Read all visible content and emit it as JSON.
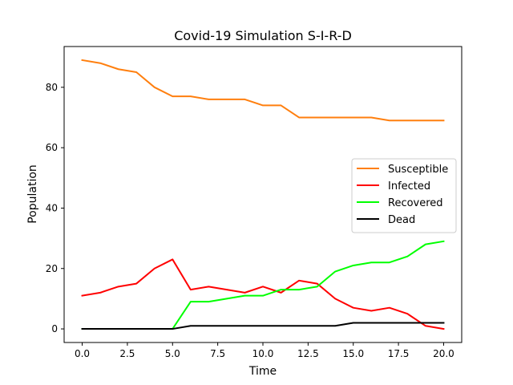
{
  "chart_data": {
    "type": "line",
    "title": "Covid-19 Simulation S-I-R-D",
    "xlabel": "Time",
    "ylabel": "Population",
    "xlim": [
      -1,
      21
    ],
    "ylim": [
      -4.5,
      93.5
    ],
    "xticks": [
      0.0,
      2.5,
      5.0,
      7.5,
      10.0,
      12.5,
      15.0,
      17.5,
      20.0
    ],
    "xtick_labels": [
      "0.0",
      "2.5",
      "5.0",
      "7.5",
      "10.0",
      "12.5",
      "15.0",
      "17.5",
      "20.0"
    ],
    "yticks": [
      0,
      20,
      40,
      60,
      80
    ],
    "ytick_labels": [
      "0",
      "20",
      "40",
      "60",
      "80"
    ],
    "grid": false,
    "legend_position": "center-right",
    "x": [
      0,
      1,
      2,
      3,
      4,
      5,
      6,
      7,
      8,
      9,
      10,
      11,
      12,
      13,
      14,
      15,
      16,
      17,
      18,
      19,
      20
    ],
    "series": [
      {
        "name": "Susceptible",
        "color": "#ff7f0e",
        "values": [
          89,
          88,
          86,
          85,
          80,
          77,
          77,
          76,
          76,
          76,
          74,
          74,
          70,
          70,
          70,
          70,
          70,
          69,
          69,
          69,
          69
        ]
      },
      {
        "name": "Infected",
        "color": "#ff0000",
        "values": [
          11,
          12,
          14,
          15,
          20,
          23,
          13,
          14,
          13,
          12,
          14,
          12,
          16,
          15,
          10,
          7,
          6,
          7,
          5,
          1,
          0
        ]
      },
      {
        "name": "Recovered",
        "color": "#00ff00",
        "values": [
          0,
          0,
          0,
          0,
          0,
          0,
          9,
          9,
          10,
          11,
          11,
          13,
          13,
          14,
          19,
          21,
          22,
          22,
          24,
          28,
          29
        ]
      },
      {
        "name": "Dead",
        "color": "#000000",
        "values": [
          0,
          0,
          0,
          0,
          0,
          0,
          1,
          1,
          1,
          1,
          1,
          1,
          1,
          1,
          1,
          2,
          2,
          2,
          2,
          2,
          2
        ]
      }
    ]
  }
}
